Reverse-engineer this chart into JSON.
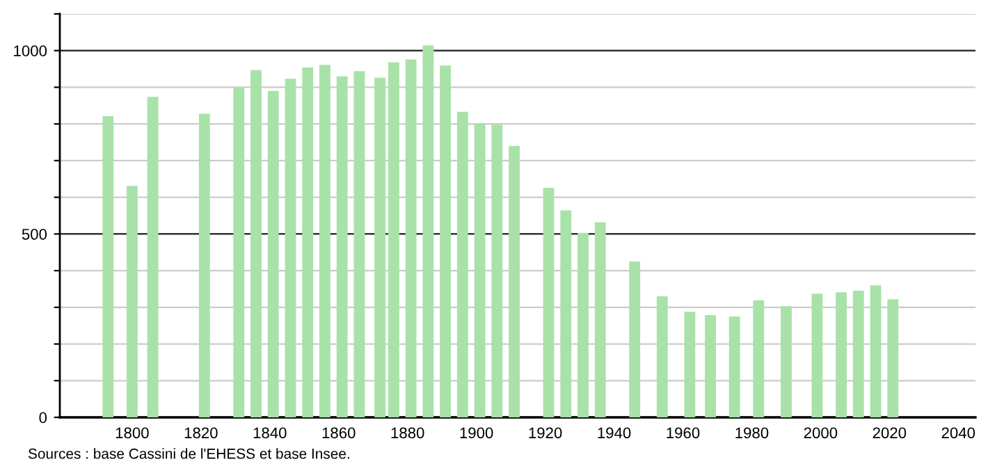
{
  "chart_data": {
    "type": "bar",
    "x": [
      1793,
      1800,
      1806,
      1821,
      1831,
      1836,
      1841,
      1846,
      1851,
      1856,
      1861,
      1866,
      1872,
      1876,
      1881,
      1886,
      1891,
      1896,
      1901,
      1906,
      1911,
      1921,
      1926,
      1931,
      1936,
      1946,
      1954,
      1962,
      1968,
      1975,
      1982,
      1990,
      1999,
      2006,
      2011,
      2016,
      2021
    ],
    "values": [
      821,
      631,
      874,
      828,
      900,
      947,
      890,
      923,
      954,
      961,
      930,
      944,
      926,
      968,
      976,
      1014,
      959,
      833,
      801,
      798,
      740,
      626,
      564,
      503,
      532,
      425,
      330,
      288,
      279,
      275,
      319,
      303,
      337,
      341,
      345,
      360,
      322
    ],
    "color": "#a8e2a8",
    "xlim": [
      1779,
      2045
    ],
    "xticks": [
      1800,
      1820,
      1840,
      1860,
      1880,
      1900,
      1920,
      1940,
      1960,
      1980,
      2000,
      2020,
      2040
    ],
    "ylim": [
      0,
      1100
    ],
    "yticks": [
      0,
      {
        "value": 100,
        "label": null
      },
      {
        "value": 200,
        "label": null
      },
      {
        "value": 300,
        "label": null
      },
      {
        "value": 400,
        "label": null
      },
      500,
      {
        "value": 600,
        "label": null
      },
      {
        "value": 700,
        "label": null
      },
      {
        "value": 800,
        "label": null
      },
      {
        "value": 900,
        "label": null
      },
      1000,
      {
        "value": 1100,
        "label": null
      }
    ],
    "grid": "y",
    "annotations": [
      "Sources : base Cassini de l'EHESS et base Insee."
    ]
  }
}
